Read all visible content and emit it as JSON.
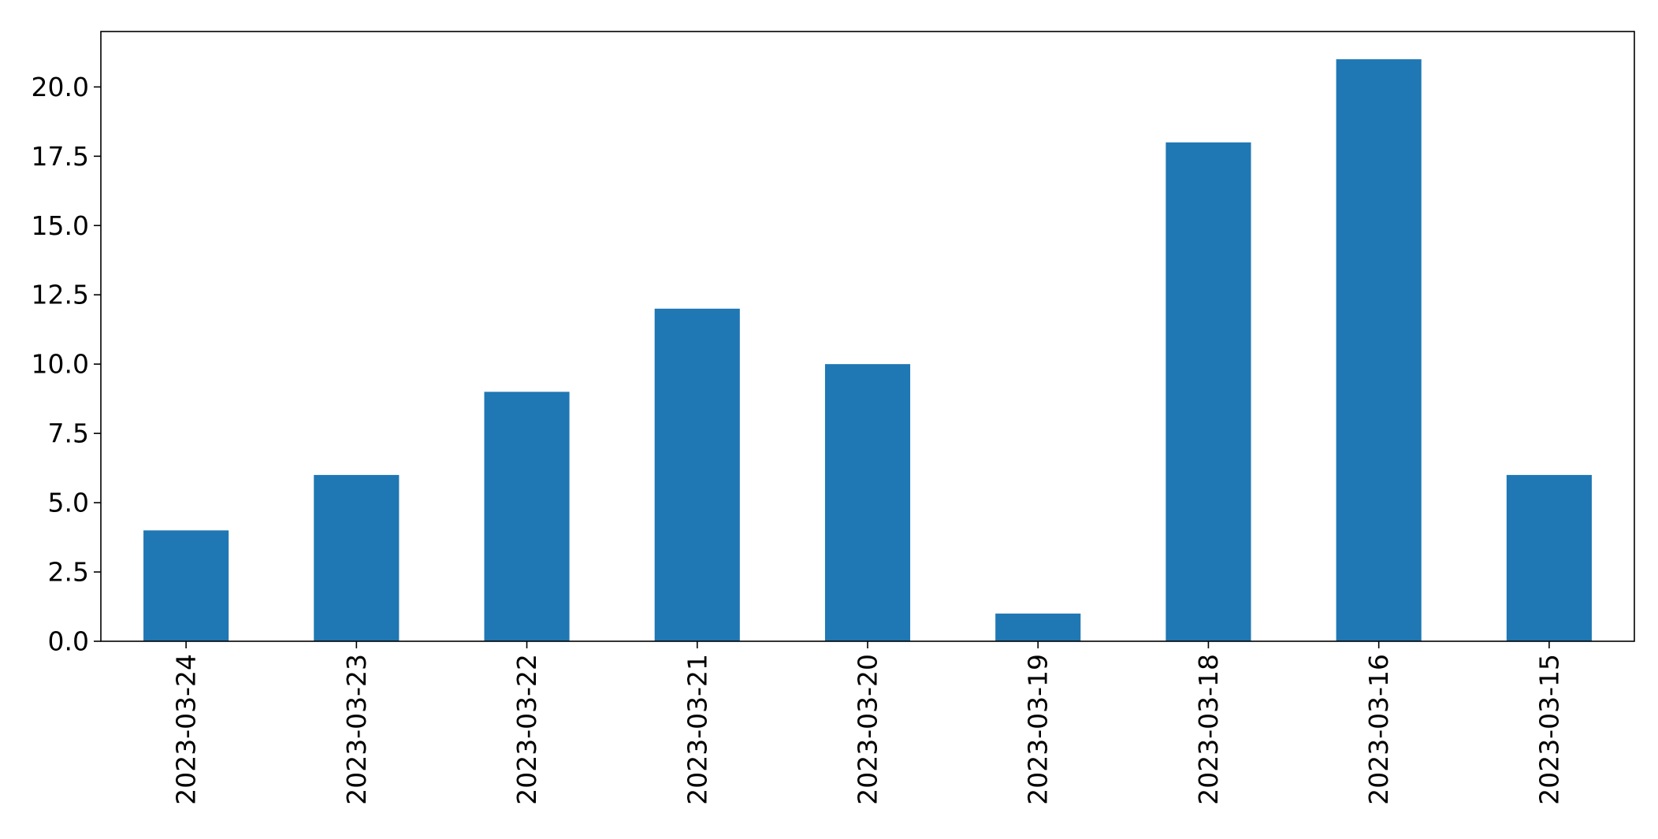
{
  "chart_data": {
    "type": "bar",
    "title": "",
    "xlabel": "",
    "ylabel": "",
    "categories": [
      "2023-03-24",
      "2023-03-23",
      "2023-03-22",
      "2023-03-21",
      "2023-03-20",
      "2023-03-19",
      "2023-03-18",
      "2023-03-16",
      "2023-03-15"
    ],
    "values": [
      4,
      6,
      9,
      12,
      10,
      1,
      18,
      21,
      6
    ],
    "ylim": [
      0,
      22
    ],
    "yticks": [
      "0.0",
      "2.5",
      "5.0",
      "7.5",
      "10.0",
      "12.5",
      "15.0",
      "17.5",
      "20.0"
    ],
    "bar_color": "#1f77b4",
    "grid": false,
    "legend": "none"
  }
}
